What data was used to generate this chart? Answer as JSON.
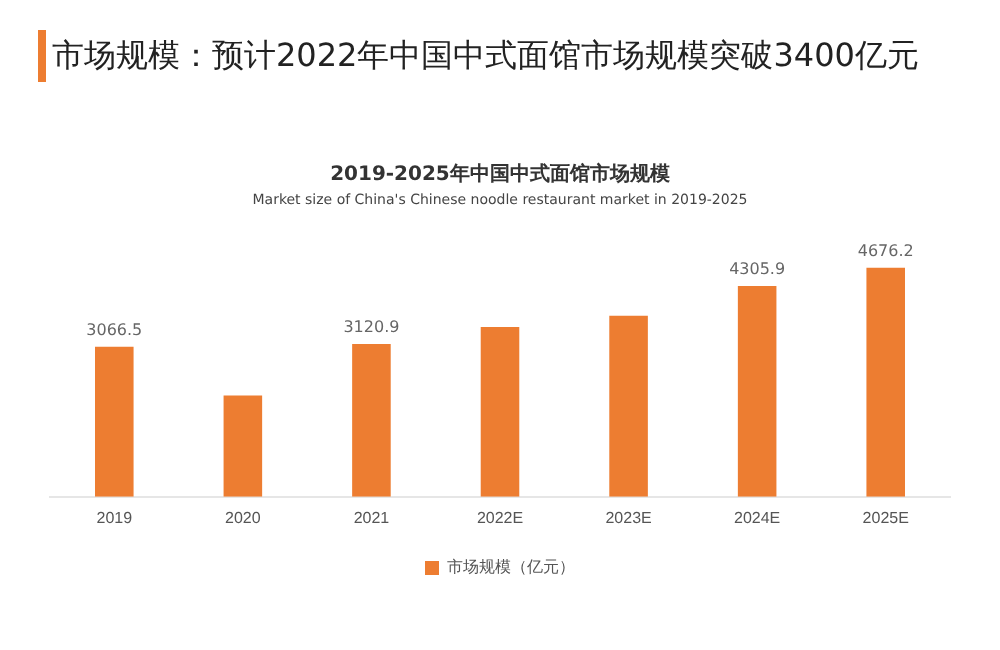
{
  "chart_data": {
    "type": "bar",
    "title": "2019-2025年中国中式面馆市场规模",
    "subtitle": "Market size of China's Chinese noodle restaurant market in 2019-2025",
    "annotations": [
      "市场规模：预计2022年中国中式面馆市场规模突破3400亿元"
    ],
    "categories": [
      "2019",
      "2020",
      "2021",
      "2022E",
      "2023E",
      "2024E",
      "2025E"
    ],
    "series": [
      {
        "name": "市场规模（亿元）",
        "color": "#ed7d31",
        "values": [
          3066.5,
          2070,
          3120.9,
          3470,
          3700,
          4305.9,
          4676.2
        ],
        "value_labels": [
          "3066.5",
          null,
          "3120.9",
          null,
          null,
          "4305.9",
          "4676.2"
        ]
      }
    ],
    "tick_labels": "x",
    "legend": "bottom",
    "grid": false
  }
}
